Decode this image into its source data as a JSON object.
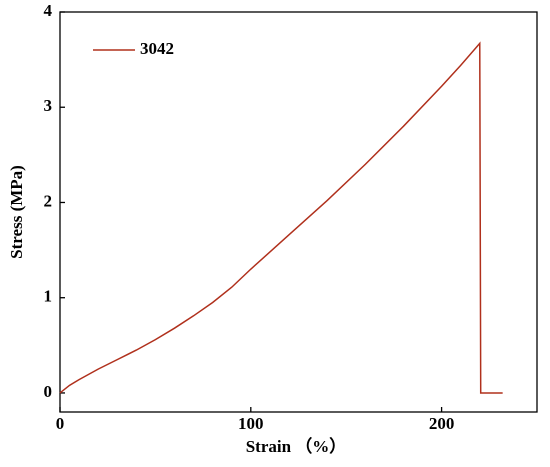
{
  "chart_data": {
    "type": "line",
    "x_label": "Strain （%）",
    "y_label": "Stress (MPa)",
    "xlim": [
      0,
      250
    ],
    "ylim": [
      -0.2,
      4
    ],
    "xticks": [
      0,
      100,
      200
    ],
    "yticks": [
      0,
      1,
      2,
      3,
      4
    ],
    "legend": "top-left",
    "series": [
      {
        "name": "3042",
        "color": "#b0301c",
        "x": [
          0,
          5,
          10,
          20,
          30,
          40,
          50,
          60,
          70,
          80,
          90,
          100,
          120,
          140,
          160,
          180,
          200,
          210,
          220,
          220.5,
          232
        ],
        "values": [
          0,
          0.08,
          0.14,
          0.25,
          0.35,
          0.45,
          0.56,
          0.68,
          0.81,
          0.95,
          1.11,
          1.3,
          1.66,
          2.02,
          2.4,
          2.8,
          3.22,
          3.44,
          3.67,
          0,
          0
        ]
      }
    ]
  }
}
